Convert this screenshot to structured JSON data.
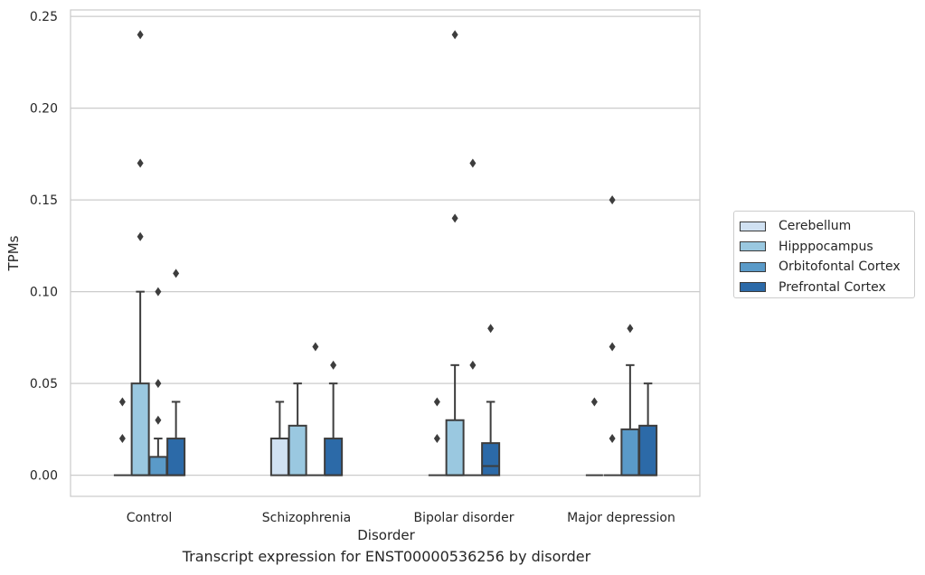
{
  "chart_data": {
    "type": "box",
    "title": "Transcript expression for ENST00000536256 by disorder",
    "xlabel": "Disorder",
    "ylabel": "TPMs",
    "ylim": [
      -0.0115,
      0.2535
    ],
    "yticks": [
      0.0,
      0.05,
      0.1,
      0.15,
      0.2,
      0.25
    ],
    "ytick_labels": [
      "0.00",
      "0.05",
      "0.10",
      "0.15",
      "0.20",
      "0.25"
    ],
    "categories": [
      "Control",
      "Schizophrenia",
      "Bipolar disorder",
      "Major depression"
    ],
    "grid": "horizontal",
    "legend_position": "right",
    "series": [
      {
        "name": "Cerebellum",
        "color": "#d0e1f2",
        "boxes": [
          {
            "q1": 0,
            "median": 0,
            "q3": 0,
            "whisker_low": 0,
            "whisker_high": 0,
            "outliers": [
              0.02,
              0.04
            ]
          },
          {
            "q1": 0,
            "median": 0.02,
            "q3": 0.02,
            "whisker_low": 0,
            "whisker_high": 0.04,
            "outliers": []
          },
          {
            "q1": 0,
            "median": 0,
            "q3": 0,
            "whisker_low": 0,
            "whisker_high": 0,
            "outliers": [
              0.02,
              0.04
            ]
          },
          {
            "q1": 0,
            "median": 0,
            "q3": 0,
            "whisker_low": 0,
            "whisker_high": 0,
            "outliers": [
              0.04
            ]
          }
        ]
      },
      {
        "name": "Hipppocampus",
        "color": "#9ac8e0",
        "boxes": [
          {
            "q1": 0,
            "median": 0,
            "q3": 0.05,
            "whisker_low": 0,
            "whisker_high": 0.1,
            "outliers": [
              0.13,
              0.17,
              0.24
            ]
          },
          {
            "q1": 0,
            "median": 0,
            "q3": 0.027,
            "whisker_low": 0,
            "whisker_high": 0.05,
            "outliers": []
          },
          {
            "q1": 0,
            "median": 0,
            "q3": 0.03,
            "whisker_low": 0,
            "whisker_high": 0.06,
            "outliers": [
              0.14,
              0.24
            ]
          },
          {
            "q1": 0,
            "median": 0,
            "q3": 0,
            "whisker_low": 0,
            "whisker_high": 0,
            "outliers": [
              0.02,
              0.07,
              0.15
            ]
          }
        ]
      },
      {
        "name": "Orbitofontal Cortex",
        "color": "#5a9ac8",
        "boxes": [
          {
            "q1": 0,
            "median": 0,
            "q3": 0.01,
            "whisker_low": 0,
            "whisker_high": 0.02,
            "outliers": [
              0.03,
              0.05,
              0.1
            ]
          },
          {
            "q1": 0,
            "median": 0,
            "q3": 0,
            "whisker_low": 0,
            "whisker_high": 0,
            "outliers": [
              0.07
            ]
          },
          {
            "q1": 0,
            "median": 0,
            "q3": 0,
            "whisker_low": 0,
            "whisker_high": 0,
            "outliers": [
              0.06,
              0.17
            ]
          },
          {
            "q1": 0,
            "median": 0,
            "q3": 0.025,
            "whisker_low": 0,
            "whisker_high": 0.06,
            "outliers": [
              0.08
            ]
          }
        ]
      },
      {
        "name": "Prefrontal Cortex",
        "color": "#2c6aa8",
        "boxes": [
          {
            "q1": 0,
            "median": 0,
            "q3": 0.02,
            "whisker_low": 0,
            "whisker_high": 0.04,
            "outliers": [
              0.11
            ]
          },
          {
            "q1": 0,
            "median": 0,
            "q3": 0.02,
            "whisker_low": 0,
            "whisker_high": 0.05,
            "outliers": [
              0.06
            ]
          },
          {
            "q1": 0,
            "median": 0.005,
            "q3": 0.0175,
            "whisker_low": 0,
            "whisker_high": 0.04,
            "outliers": [
              0.08
            ]
          },
          {
            "q1": 0,
            "median": 0,
            "q3": 0.027,
            "whisker_low": 0,
            "whisker_high": 0.05,
            "outliers": []
          }
        ]
      }
    ]
  }
}
